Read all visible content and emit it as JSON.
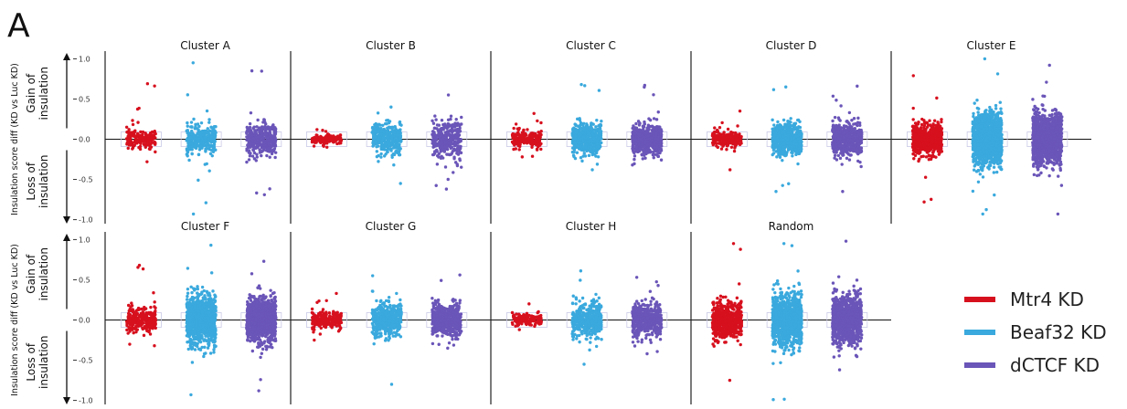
{
  "panel_label": "A",
  "colors": {
    "Mtr4 KD": "#d7101e",
    "Beaf32 KD": "#3aa9dd",
    "dCTCF KD": "#6a55b8"
  },
  "legend": [
    {
      "name": "Mtr4 KD",
      "color": "#d7101e"
    },
    {
      "name": "Beaf32 KD",
      "color": "#3aa9dd"
    },
    {
      "name": "dCTCF KD",
      "color": "#6a55b8"
    }
  ],
  "ylabel": "Insulation score diff (KD vs Luc KD)",
  "gain_label": "Gain of insulation",
  "loss_label": "Loss of insulation",
  "chart_data": {
    "type": "scatter",
    "ylim": [
      -1.05,
      1.05
    ],
    "yticks": [
      "-1.0",
      "-0.5",
      "0.0",
      "0.5",
      "1.0"
    ],
    "ytick_values": [
      -1.0,
      -0.5,
      0.0,
      0.5,
      1.0
    ],
    "series": [
      "Mtr4 KD",
      "Beaf32 KD",
      "dCTCF KD"
    ],
    "panels": [
      {
        "title": "Cluster A",
        "row": 0,
        "col": 0,
        "groups": [
          {
            "series": "Mtr4 KD",
            "n": 150,
            "min": -0.28,
            "max": 0.69,
            "spread": 0.06
          },
          {
            "series": "Beaf32 KD",
            "n": 300,
            "min": -0.93,
            "max": 0.95,
            "spread": 0.09
          },
          {
            "series": "dCTCF KD",
            "n": 350,
            "min": -0.69,
            "max": 0.85,
            "spread": 0.1
          }
        ]
      },
      {
        "title": "Cluster B",
        "row": 0,
        "col": 1,
        "groups": [
          {
            "series": "Mtr4 KD",
            "n": 150,
            "min": -0.1,
            "max": 0.12,
            "spread": 0.03
          },
          {
            "series": "Beaf32 KD",
            "n": 300,
            "min": -0.55,
            "max": 0.4,
            "spread": 0.1
          },
          {
            "series": "dCTCF KD",
            "n": 300,
            "min": -0.62,
            "max": 0.55,
            "spread": 0.11
          }
        ]
      },
      {
        "title": "Cluster C",
        "row": 0,
        "col": 2,
        "groups": [
          {
            "series": "Mtr4 KD",
            "n": 200,
            "min": -0.22,
            "max": 0.32,
            "spread": 0.05
          },
          {
            "series": "Beaf32 KD",
            "n": 450,
            "min": -0.38,
            "max": 0.68,
            "spread": 0.09
          },
          {
            "series": "dCTCF KD",
            "n": 600,
            "min": -0.32,
            "max": 0.67,
            "spread": 0.09
          }
        ]
      },
      {
        "title": "Cluster D",
        "row": 0,
        "col": 3,
        "groups": [
          {
            "series": "Mtr4 KD",
            "n": 200,
            "min": -0.38,
            "max": 0.35,
            "spread": 0.05
          },
          {
            "series": "Beaf32 KD",
            "n": 500,
            "min": -0.65,
            "max": 0.65,
            "spread": 0.1
          },
          {
            "series": "dCTCF KD",
            "n": 550,
            "min": -0.65,
            "max": 0.66,
            "spread": 0.1
          }
        ]
      },
      {
        "title": "Cluster E",
        "row": 0,
        "col": 4,
        "groups": [
          {
            "series": "Mtr4 KD",
            "n": 700,
            "min": -0.78,
            "max": 0.79,
            "spread": 0.09
          },
          {
            "series": "Beaf32 KD",
            "n": 1300,
            "min": -0.93,
            "max": 1.0,
            "spread": 0.16
          },
          {
            "series": "dCTCF KD",
            "n": 1300,
            "min": -0.93,
            "max": 0.92,
            "spread": 0.15
          }
        ]
      },
      {
        "title": "Cluster F",
        "row": 1,
        "col": 0,
        "groups": [
          {
            "series": "Mtr4 KD",
            "n": 250,
            "min": -0.32,
            "max": 0.68,
            "spread": 0.07
          },
          {
            "series": "Beaf32 KD",
            "n": 1000,
            "min": -0.93,
            "max": 0.93,
            "spread": 0.15
          },
          {
            "series": "dCTCF KD",
            "n": 900,
            "min": -0.88,
            "max": 0.73,
            "spread": 0.14
          }
        ]
      },
      {
        "title": "Cluster G",
        "row": 1,
        "col": 1,
        "groups": [
          {
            "series": "Mtr4 KD",
            "n": 200,
            "min": -0.25,
            "max": 0.33,
            "spread": 0.05
          },
          {
            "series": "Beaf32 KD",
            "n": 500,
            "min": -0.8,
            "max": 0.55,
            "spread": 0.1
          },
          {
            "series": "dCTCF KD",
            "n": 500,
            "min": -0.35,
            "max": 0.56,
            "spread": 0.1
          }
        ]
      },
      {
        "title": "Cluster H",
        "row": 1,
        "col": 2,
        "groups": [
          {
            "series": "Mtr4 KD",
            "n": 150,
            "min": -0.12,
            "max": 0.2,
            "spread": 0.04
          },
          {
            "series": "Beaf32 KD",
            "n": 400,
            "min": -0.55,
            "max": 0.61,
            "spread": 0.1
          },
          {
            "series": "dCTCF KD",
            "n": 450,
            "min": -0.42,
            "max": 0.53,
            "spread": 0.1
          }
        ]
      },
      {
        "title": "Random",
        "row": 1,
        "col": 3,
        "groups": [
          {
            "series": "Mtr4 KD",
            "n": 500,
            "min": -0.75,
            "max": 0.95,
            "spread": 0.12
          },
          {
            "series": "Beaf32 KD",
            "n": 1000,
            "min": -0.99,
            "max": 0.95,
            "spread": 0.16
          },
          {
            "series": "dCTCF KD",
            "n": 1000,
            "min": -0.62,
            "max": 0.98,
            "spread": 0.15
          }
        ]
      }
    ]
  }
}
